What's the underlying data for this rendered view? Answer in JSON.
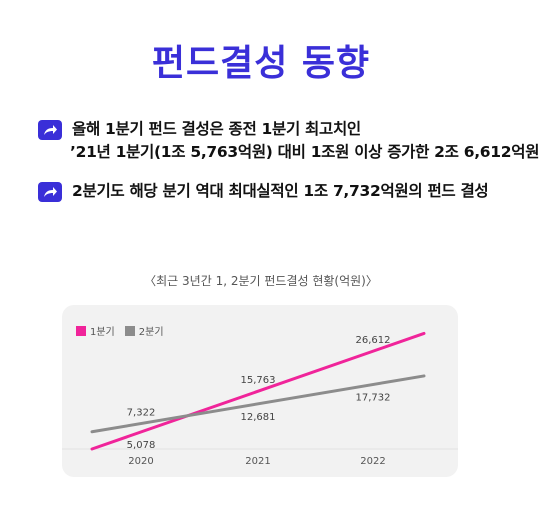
{
  "title": "펀드결성 동향",
  "bullets": [
    {
      "icon": "share-arrow-icon",
      "lines": [
        "올해 1분기 펀드 결성은 종전 1분기 최고치인",
        "’21년 1분기(1조 5,763억원) 대비 1조원 이상 증가한 2조 6,612억원"
      ]
    },
    {
      "icon": "share-arrow-icon",
      "lines": [
        "2분기도 해당 분기 역대 최대실적인 1조 7,732억원의 펀드 결성"
      ]
    }
  ],
  "chart_caption": "〈최근 3년간 1, 2분기 펀드결성 현황(억원)〉",
  "colors": {
    "accent": "#3a2fd8",
    "q1": "#f0249a",
    "q2": "#8c8c8c"
  },
  "chart_data": {
    "type": "line",
    "title": "〈최근 3년간 1, 2분기 펀드결성 현황(억원)〉",
    "xlabel": "",
    "ylabel": "",
    "categories": [
      "2020",
      "2021",
      "2022"
    ],
    "series": [
      {
        "name": "1분기",
        "color": "#f0249a",
        "values": [
          5078,
          15763,
          26612
        ],
        "labels": [
          "5,078",
          "15,763",
          "26,612"
        ]
      },
      {
        "name": "2분기",
        "color": "#8c8c8c",
        "values": [
          7322,
          12681,
          17732
        ],
        "labels": [
          "7,322",
          "12,681",
          "17,732"
        ]
      }
    ],
    "ylim": [
      0,
      30000
    ],
    "grid": false,
    "legend": "top-left"
  }
}
